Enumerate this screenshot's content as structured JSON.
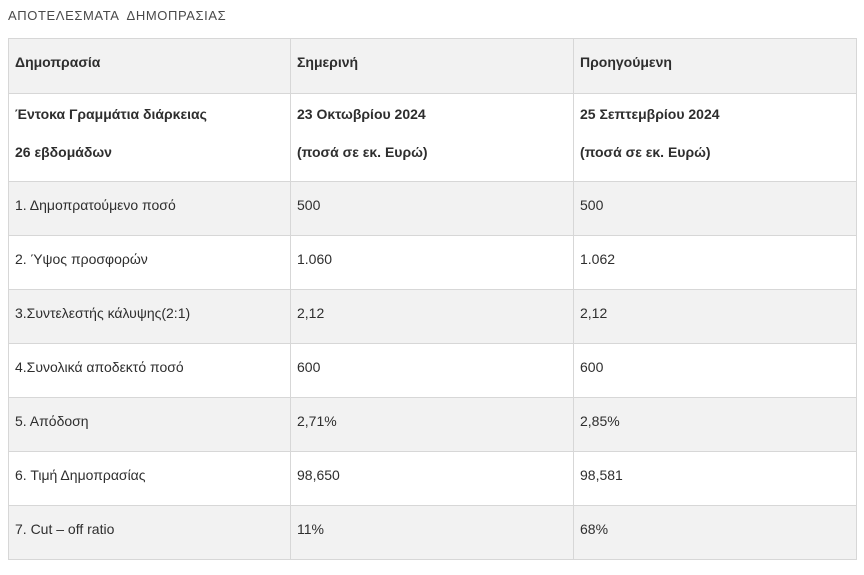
{
  "page": {
    "title": "ΑΠΟΤΕΛΕΣΜΑΤΑ  ΔΗΜΟΠΡΑΣΙΑΣ"
  },
  "colors": {
    "row_stripe": "#f2f2f2",
    "border": "#d7d7d7",
    "text": "#2e2e2e",
    "title_text": "#4a4a4a"
  },
  "table": {
    "header": {
      "auction": "Δημοπρασία",
      "current": "Σημερινή",
      "previous": "Προηγούμενη"
    },
    "subheader": {
      "instrument_line1": "Έντοκα Γραμμάτια διάρκειας",
      "instrument_line2": "26 εβδομάδων",
      "current_date": "23 Οκτωβρίου 2024",
      "current_units": "(ποσά σε εκ. Ευρώ)",
      "previous_date": "25 Σεπτεμβρίου 2024",
      "previous_units": "(ποσά σε εκ. Ευρώ)"
    },
    "rows": [
      {
        "label": "1. Δημοπρατούμενο ποσό",
        "current": "500",
        "previous": "500"
      },
      {
        "label": "2. Ύψος προσφορών",
        "current": "1.060",
        "previous": "1.062"
      },
      {
        "label": "3.Συντελεστής κάλυψης(2:1)",
        "current": "2,12",
        "previous": "2,12"
      },
      {
        "label": "4.Συνολικά αποδεκτό ποσό",
        "current": "600",
        "previous": "600"
      },
      {
        "label": "5. Απόδοση",
        "current": "2,71%",
        "previous": "2,85%"
      },
      {
        "label": "6. Τιμή Δημοπρασίας",
        "current": "98,650",
        "previous": "98,581"
      },
      {
        "label": "7. Cut – off ratio",
        "current": "11%",
        "previous": "68%"
      }
    ]
  }
}
